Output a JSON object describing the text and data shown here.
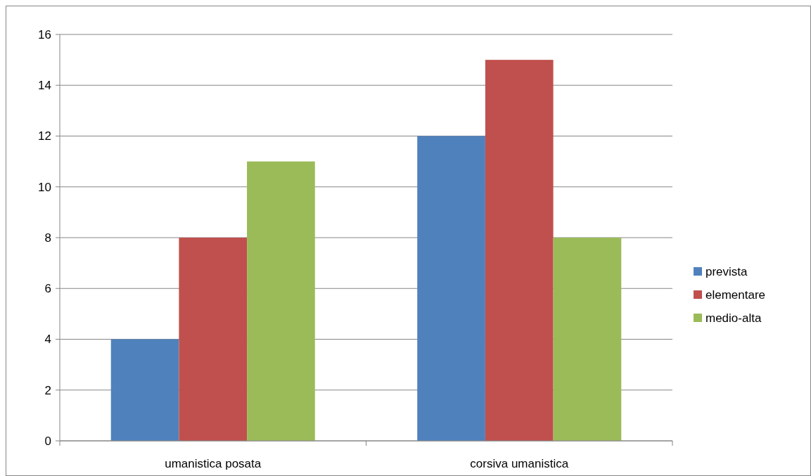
{
  "chart_data": {
    "type": "bar",
    "categories": [
      "umanistica posata",
      "corsiva umanistica"
    ],
    "series": [
      {
        "name": "prevista",
        "color": "#4f81bd",
        "values": [
          4,
          12
        ]
      },
      {
        "name": "elementare",
        "color": "#c0504d",
        "values": [
          8,
          15
        ]
      },
      {
        "name": "medio-alta",
        "color": "#9bbb59",
        "values": [
          11,
          8
        ]
      }
    ],
    "ylim": [
      0,
      16
    ],
    "yticks": [
      0,
      2,
      4,
      6,
      8,
      10,
      12,
      14,
      16
    ],
    "grid": "y",
    "legend": "right"
  }
}
